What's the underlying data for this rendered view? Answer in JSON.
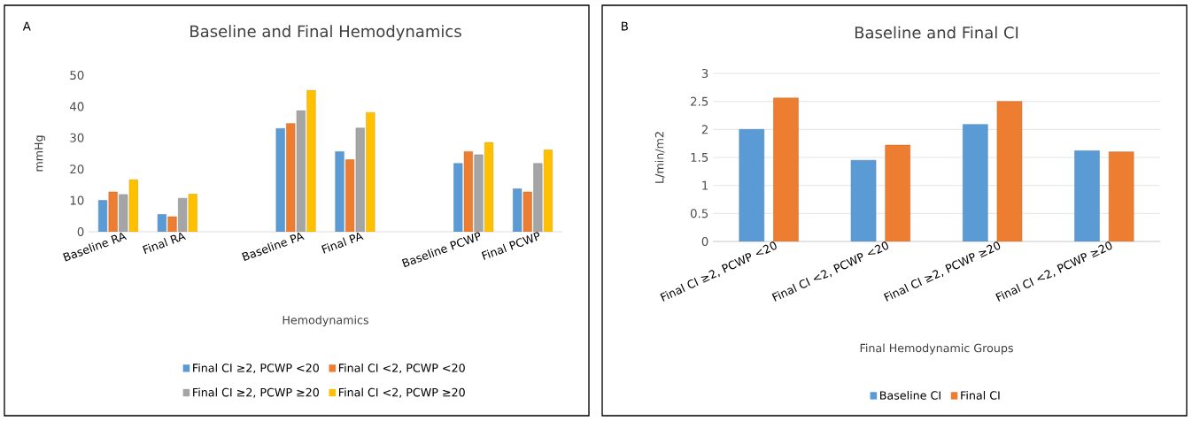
{
  "chart_data": [
    {
      "type": "bar",
      "title": "Baseline and Final Hemodynamics",
      "xlabel": "Hemodynamics",
      "ylabel": "mmHg",
      "categories": [
        "Baseline RA",
        "Final RA",
        null,
        "Baseline PA",
        "Final PA",
        null,
        "Baseline PCWP",
        "Final PCWP"
      ],
      "series": [
        {
          "name": "Final CI ≥2, PCWP <20",
          "color": "#5b9bd5",
          "values": [
            10,
            5.5,
            null,
            33,
            25.6,
            null,
            21.8,
            13.7
          ]
        },
        {
          "name": "Final CI <2, PCWP <20",
          "color": "#ed7d31",
          "values": [
            12.7,
            4.8,
            null,
            34.6,
            23,
            null,
            25.6,
            12.7
          ]
        },
        {
          "name": "Final CI ≥2, PCWP ≥20",
          "color": "#a5a5a5",
          "values": [
            11.9,
            10.7,
            null,
            38.7,
            33.1,
            null,
            24.6,
            21.8
          ]
        },
        {
          "name": "Final CI <2, PCWP ≥20",
          "color": "#ffc000",
          "values": [
            16.6,
            12,
            null,
            45.2,
            38.1,
            null,
            28.5,
            26.1
          ]
        }
      ],
      "ylim": [
        0,
        50
      ],
      "yticks": [
        0,
        10,
        20,
        30,
        40,
        50
      ],
      "grid": false,
      "legend": "bottom",
      "annotations": [
        "A"
      ]
    },
    {
      "type": "bar",
      "title": "Baseline and Final CI",
      "xlabel": "Final Hemodynamic Groups",
      "ylabel": "L/min/m2",
      "categories": [
        "Final CI ≥2, PCWP <20",
        "Final CI <2, PCWP <20",
        "Final CI ≥2, PCWP ≥20",
        "Final CI <2, PCWP ≥20"
      ],
      "series": [
        {
          "name": "Baseline CI",
          "color": "#5b9bd5",
          "values": [
            2.0,
            1.45,
            2.09,
            1.62
          ]
        },
        {
          "name": "Final CI",
          "color": "#ed7d31",
          "values": [
            2.56,
            1.72,
            2.5,
            1.6
          ]
        }
      ],
      "ylim": [
        0,
        3
      ],
      "yticks": [
        0,
        0.5,
        1,
        1.5,
        2,
        2.5,
        3
      ],
      "grid": "y",
      "legend": "bottom",
      "annotations": [
        "B"
      ]
    }
  ]
}
